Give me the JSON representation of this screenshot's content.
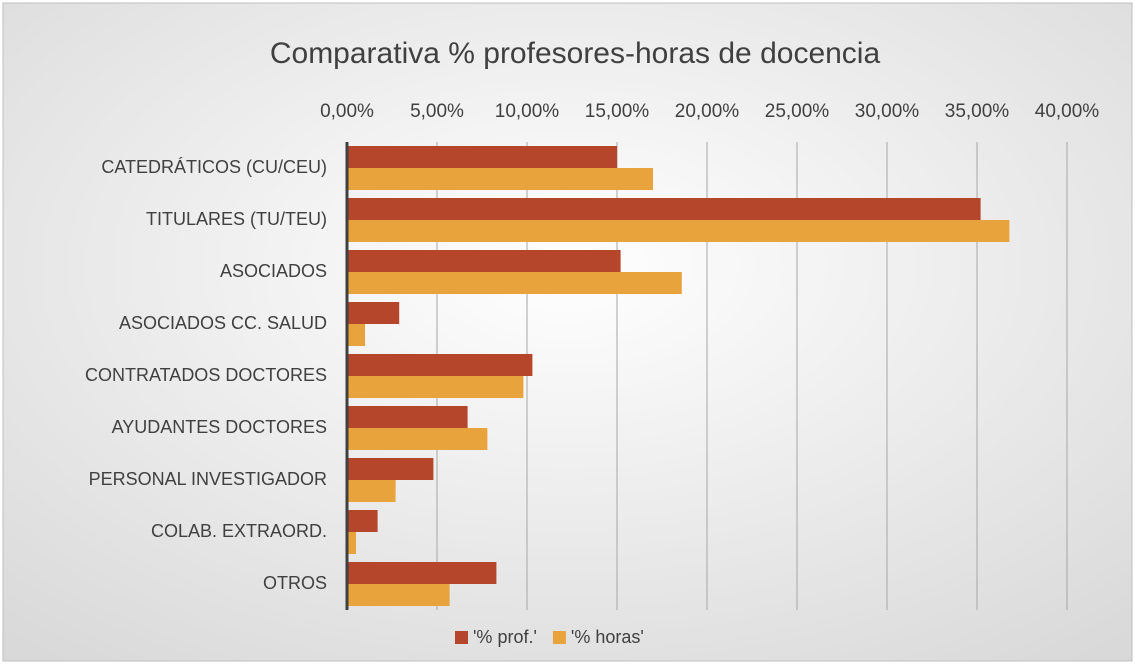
{
  "chart_data": {
    "type": "bar",
    "orientation": "horizontal",
    "title": "Comparativa % profesores-horas de docencia",
    "categories": [
      "CATEDRÁTICOS (CU/CEU)",
      "TITULARES (TU/TEU)",
      "ASOCIADOS",
      "ASOCIADOS CC. SALUD",
      "CONTRATADOS DOCTORES",
      "AYUDANTES DOCTORES",
      "PERSONAL INVESTIGADOR",
      "COLAB. EXTRAORD.",
      "OTROS"
    ],
    "series": [
      {
        "name": "'% prof.'",
        "color": "#b5452b",
        "values": [
          15.0,
          35.2,
          15.2,
          2.9,
          10.3,
          6.7,
          4.8,
          1.7,
          8.3
        ]
      },
      {
        "name": "'% horas'",
        "color": "#e8a33c",
        "values": [
          17.0,
          36.8,
          18.6,
          1.0,
          9.8,
          7.8,
          2.7,
          0.5,
          5.7
        ]
      }
    ],
    "xlim": [
      0,
      40
    ],
    "xticks": [
      {
        "value": 0,
        "label": "0,00%"
      },
      {
        "value": 5,
        "label": "5,00%"
      },
      {
        "value": 10,
        "label": "10,00%"
      },
      {
        "value": 15,
        "label": "15,00%"
      },
      {
        "value": 20,
        "label": "20,00%"
      },
      {
        "value": 25,
        "label": "25,00%"
      },
      {
        "value": 30,
        "label": "30,00%"
      },
      {
        "value": 35,
        "label": "35,00%"
      },
      {
        "value": 40,
        "label": "40,00%"
      }
    ],
    "grid": true,
    "legend": "bottom"
  }
}
